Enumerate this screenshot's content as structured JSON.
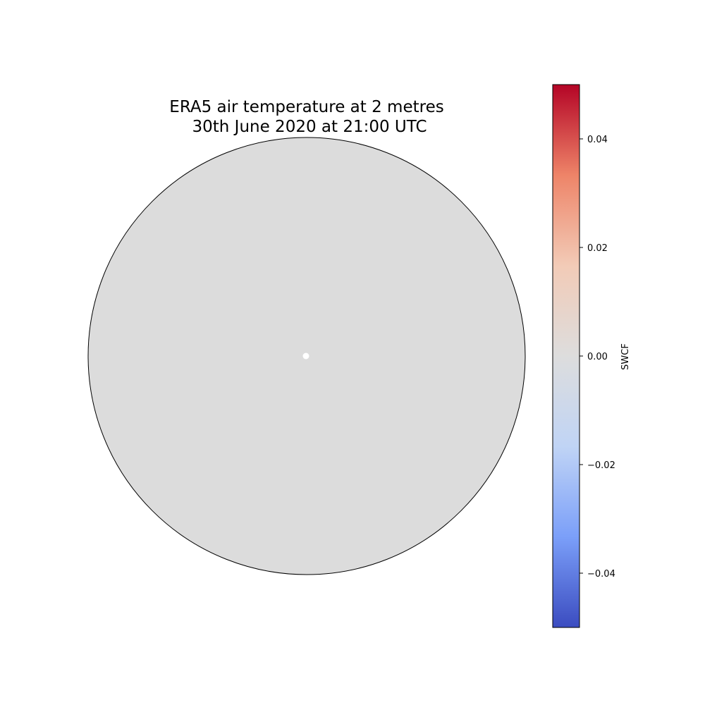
{
  "title": {
    "line1": "ERA5 air temperature at 2 metres",
    "line2": "30th June 2020 at 21:00 UTC"
  },
  "map": {
    "projection": "polar-orthographic",
    "fill_color": "#dcdcdc",
    "outline_color": "#000000",
    "center_marker_color": "#ffffff"
  },
  "chart_data": {
    "type": "heatmap",
    "title": "ERA5 air temperature at 2 metres 30th June 2020 at 21:00 UTC",
    "values_shown": "uniform 0.00 across map",
    "colorbar": {
      "label": "SWCF",
      "colormap": "coolwarm",
      "range": [
        -0.05,
        0.05
      ],
      "ticks": [
        -0.04,
        -0.02,
        0.0,
        0.02,
        0.04
      ],
      "tick_labels": [
        "−0.04",
        "−0.02",
        "0.00",
        "0.02",
        "0.04"
      ],
      "colors": [
        "#3b4cc0",
        "#7b9ff9",
        "#c0d4f5",
        "#dddddd",
        "#f2cbb7",
        "#ee8468",
        "#b40426"
      ]
    }
  }
}
